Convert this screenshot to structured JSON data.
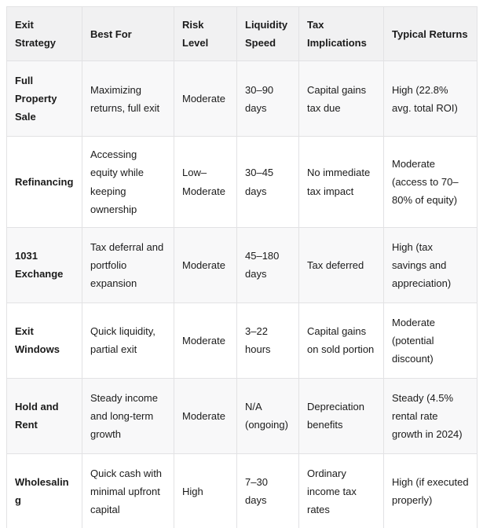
{
  "table": {
    "columns": [
      "Exit Strategy",
      "Best For",
      "Risk Level",
      "Liquidity Speed",
      "Tax Implications",
      "Typical Returns"
    ],
    "rows": [
      [
        "Full Property Sale",
        "Maximizing returns, full exit",
        "Moderate",
        "30–90 days",
        "Capital gains tax due",
        "High (22.8% avg. total ROI)"
      ],
      [
        "Refinancing",
        "Accessing equity while keeping ownership",
        "Low–Moderate",
        "30–45 days",
        "No immediate tax impact",
        "Moderate (access to 70–80% of equity)"
      ],
      [
        "1031 Exchange",
        "Tax deferral and portfolio expansion",
        "Moderate",
        "45–180 days",
        "Tax deferred",
        "High (tax savings and appreciation)"
      ],
      [
        "Exit Windows",
        "Quick liquidity, partial exit",
        "Moderate",
        "3–22 hours",
        "Capital gains on sold portion",
        "Moderate (potential discount)"
      ],
      [
        "Hold and Rent",
        "Steady income and long-term growth",
        "Moderate",
        "N/A (ongoing)",
        "Depreciation benefits",
        "Steady (4.5% rental rate growth in 2024)"
      ],
      [
        "Wholesaling",
        "Quick cash with minimal upfront capital",
        "High",
        "7–30 days",
        "Ordinary income tax rates",
        "High (if executed properly)"
      ]
    ]
  },
  "colors": {
    "page_bg": "#ffffff",
    "header_bg": "#f1f1f2",
    "stripe_bg": "#f8f8f9",
    "row_bg": "#ffffff",
    "border": "#e2e2e4",
    "text": "#1b1b1b"
  }
}
